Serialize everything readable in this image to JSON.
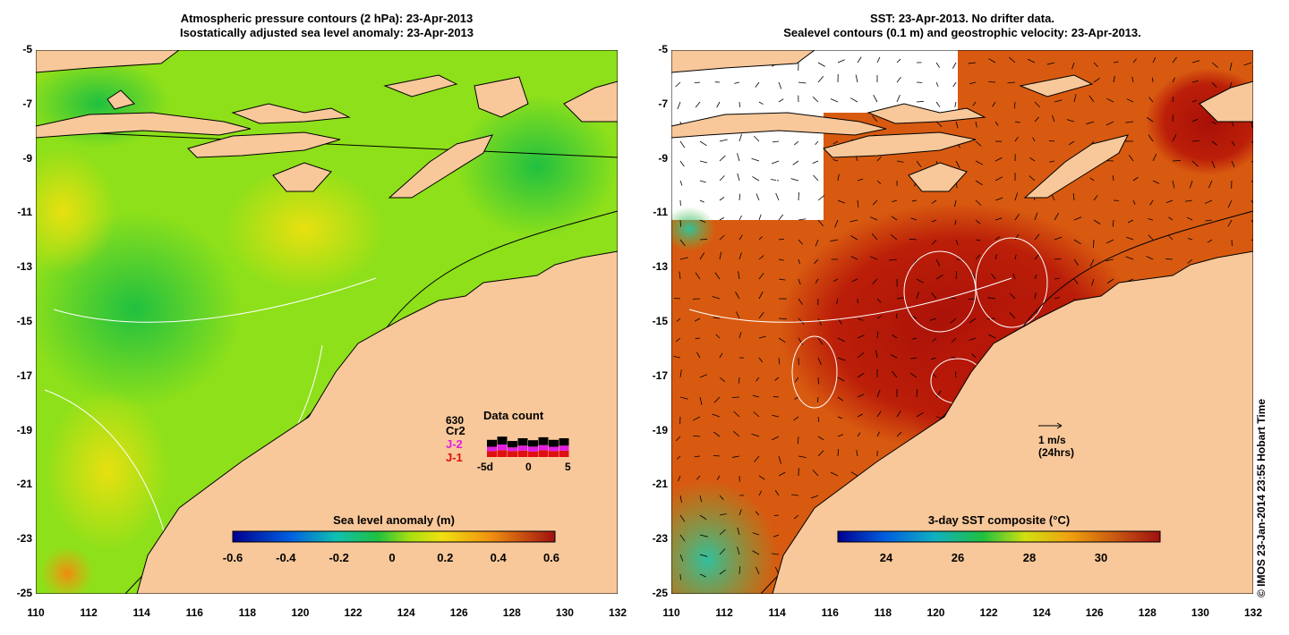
{
  "left_panel": {
    "title_line1": "Atmospheric pressure contours (2 hPa): 23-Apr-2013",
    "title_line2": "Isostatically adjusted sea level anomaly: 23-Apr-2013",
    "colorbar_label": "Sea level anomaly (m)",
    "colorbar_ticks": [
      "-0.6",
      "-0.4",
      "-0.2",
      "0",
      "0.2",
      "0.4",
      "0.6"
    ],
    "data_count": {
      "title": "Data count",
      "count": "630",
      "missions": [
        "Cr2",
        "J-2",
        "J-1"
      ],
      "mission_colors": [
        "#000000",
        "#e020e0",
        "#e01010"
      ],
      "axis_labels": [
        "-5d",
        "0",
        "5"
      ]
    }
  },
  "right_panel": {
    "title_line1": "SST: 23-Apr-2013. No drifter data.",
    "title_line2": "Sealevel contours (0.1 m) and geostrophic velocity: 23-Apr-2013.",
    "colorbar_label": "3-day SST composite (°C)",
    "colorbar_ticks": [
      "24",
      "26",
      "28",
      "30"
    ],
    "scale_arrow_label": "1 m/s",
    "scale_arrow_sublabel": "(24hrs)"
  },
  "axes": {
    "lat_labels": [
      "-5",
      "-7",
      "-9",
      "-11",
      "-13",
      "-15",
      "-17",
      "-19",
      "-21",
      "-23",
      "-25"
    ],
    "lon_labels": [
      "110",
      "112",
      "114",
      "116",
      "118",
      "120",
      "122",
      "124",
      "126",
      "128",
      "130",
      "132"
    ]
  },
  "colors": {
    "land": "#f8c89a",
    "sla_ocean": "#8ee01a",
    "sst_ocean": "#d85a10",
    "sst_hot": "#a81008"
  },
  "copyright": "© IMOS 23-Jan-2014 23:55 Hobart Time"
}
